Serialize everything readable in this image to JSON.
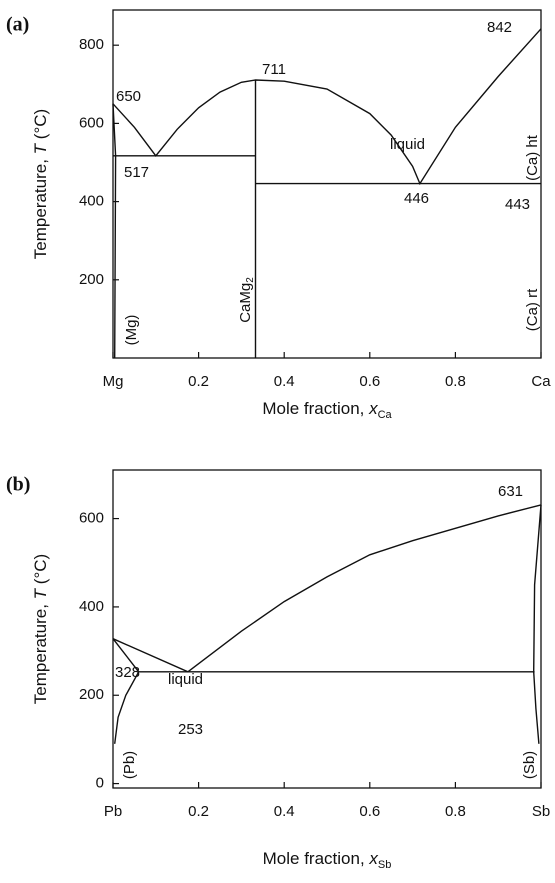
{
  "chart_data": [
    {
      "type": "line",
      "panel_label": "(a)",
      "xlabel": [
        "Mole fraction, ",
        "x",
        "Ca"
      ],
      "ylabel": [
        "Temperature, ",
        "T",
        " (°C)"
      ],
      "xlim": [
        0,
        1
      ],
      "ylim": [
        0,
        890
      ],
      "xticks": [
        {
          "value": 0,
          "label": "Mg"
        },
        0.2,
        0.4,
        0.6,
        0.8,
        {
          "value": 1,
          "label": "Ca"
        }
      ],
      "yticks": [
        200,
        400,
        600,
        800
      ],
      "series": [
        {
          "color": "#111111",
          "x": [
            0,
            0.05,
            0.1,
            0.15,
            0.2,
            0.25,
            0.3,
            0.333,
            0.4,
            0.5,
            0.6,
            0.65,
            0.7,
            0.717,
            0.8,
            0.9,
            1
          ],
          "values": [
            650,
            590,
            517,
            585,
            640,
            680,
            705,
            711,
            708,
            688,
            625,
            570,
            490,
            446,
            590,
            720,
            842
          ]
        },
        {
          "color": "#111111",
          "x": [
            0,
            0.333
          ],
          "values": [
            517,
            517
          ]
        },
        {
          "color": "#111111",
          "x": [
            0.333,
            1
          ],
          "values": [
            446,
            446
          ]
        },
        {
          "color": "#111111",
          "x": [
            0.333,
            0.333
          ],
          "values": [
            711,
            0
          ]
        },
        {
          "color": "#111111",
          "x": [
            0,
            0.006,
            0.004
          ],
          "values": [
            650,
            517,
            0
          ]
        }
      ],
      "annotations": [
        "650",
        "517",
        "711",
        "liquid",
        "446",
        "443",
        "842",
        "(Mg)",
        "(Ca) ht",
        "(Ca) rt"
      ],
      "compound": [
        "CaMg",
        "2"
      ]
    },
    {
      "type": "line",
      "panel_label": "(b)",
      "xlabel": [
        "Mole fraction, ",
        "x",
        "Sb"
      ],
      "ylabel": [
        "Temperature, ",
        "T",
        " (°C)"
      ],
      "xlim": [
        0,
        1
      ],
      "ylim": [
        -10,
        710
      ],
      "xticks": [
        {
          "value": 0,
          "label": "Pb"
        },
        0.2,
        0.4,
        0.6,
        0.8,
        {
          "value": 1,
          "label": "Sb"
        }
      ],
      "yticks": [
        0,
        200,
        400,
        600
      ],
      "series": [
        {
          "color": "#111111",
          "x": [
            0,
            0.175,
            0.3,
            0.4,
            0.5,
            0.6,
            0.7,
            0.8,
            0.9,
            1
          ],
          "values": [
            328,
            253,
            345,
            412,
            468,
            518,
            550,
            578,
            606,
            631
          ]
        },
        {
          "color": "#111111",
          "x": [
            0,
            0.06
          ],
          "values": [
            328,
            253
          ]
        },
        {
          "color": "#111111",
          "x": [
            0.06,
            0.985
          ],
          "values": [
            253,
            253
          ]
        },
        {
          "color": "#111111",
          "x": [
            0.06,
            0.03,
            0.012,
            0.004
          ],
          "values": [
            253,
            200,
            150,
            90
          ]
        },
        {
          "color": "#111111",
          "x": [
            1,
            0.985,
            0.983,
            0.988,
            0.995
          ],
          "values": [
            631,
            450,
            253,
            170,
            90
          ]
        }
      ],
      "annotations": [
        "631",
        "328",
        "liquid",
        "253",
        "(Pb)",
        "(Sb)"
      ]
    }
  ]
}
